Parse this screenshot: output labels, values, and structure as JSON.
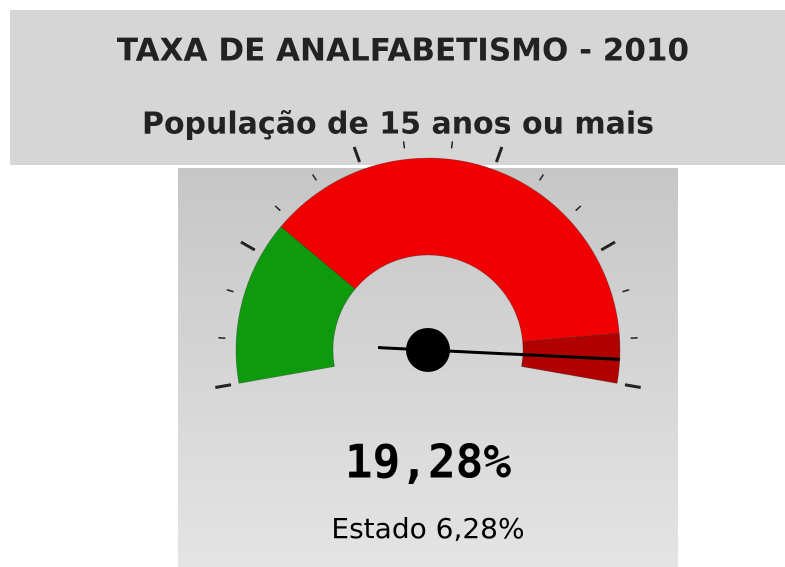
{
  "chart_data": {
    "type": "gauge",
    "title": "TAXA DE ANALFABETISMO - 2010",
    "subtitle": "População de 15 anos ou mais",
    "value": 19.28,
    "value_label": "19,28%",
    "reference": {
      "name": "Estado",
      "value": 6.28,
      "value_label": "6,28%"
    },
    "ylim": [
      0,
      20
    ],
    "yticks": [
      0,
      4,
      8,
      12,
      16,
      20
    ],
    "minor_yticks": [
      1.333,
      2.667,
      5.333,
      6.667,
      9.333,
      10.667,
      13.333,
      14.667,
      17.333,
      18.667
    ],
    "bands": [
      {
        "from": 0,
        "to": 5,
        "color": "#0d9a0d"
      },
      {
        "from": 5,
        "to": 18.5,
        "color": "#f00000"
      },
      {
        "from": 18.5,
        "to": 20,
        "color": "#b00000"
      }
    ],
    "needle_color": "#000000"
  }
}
